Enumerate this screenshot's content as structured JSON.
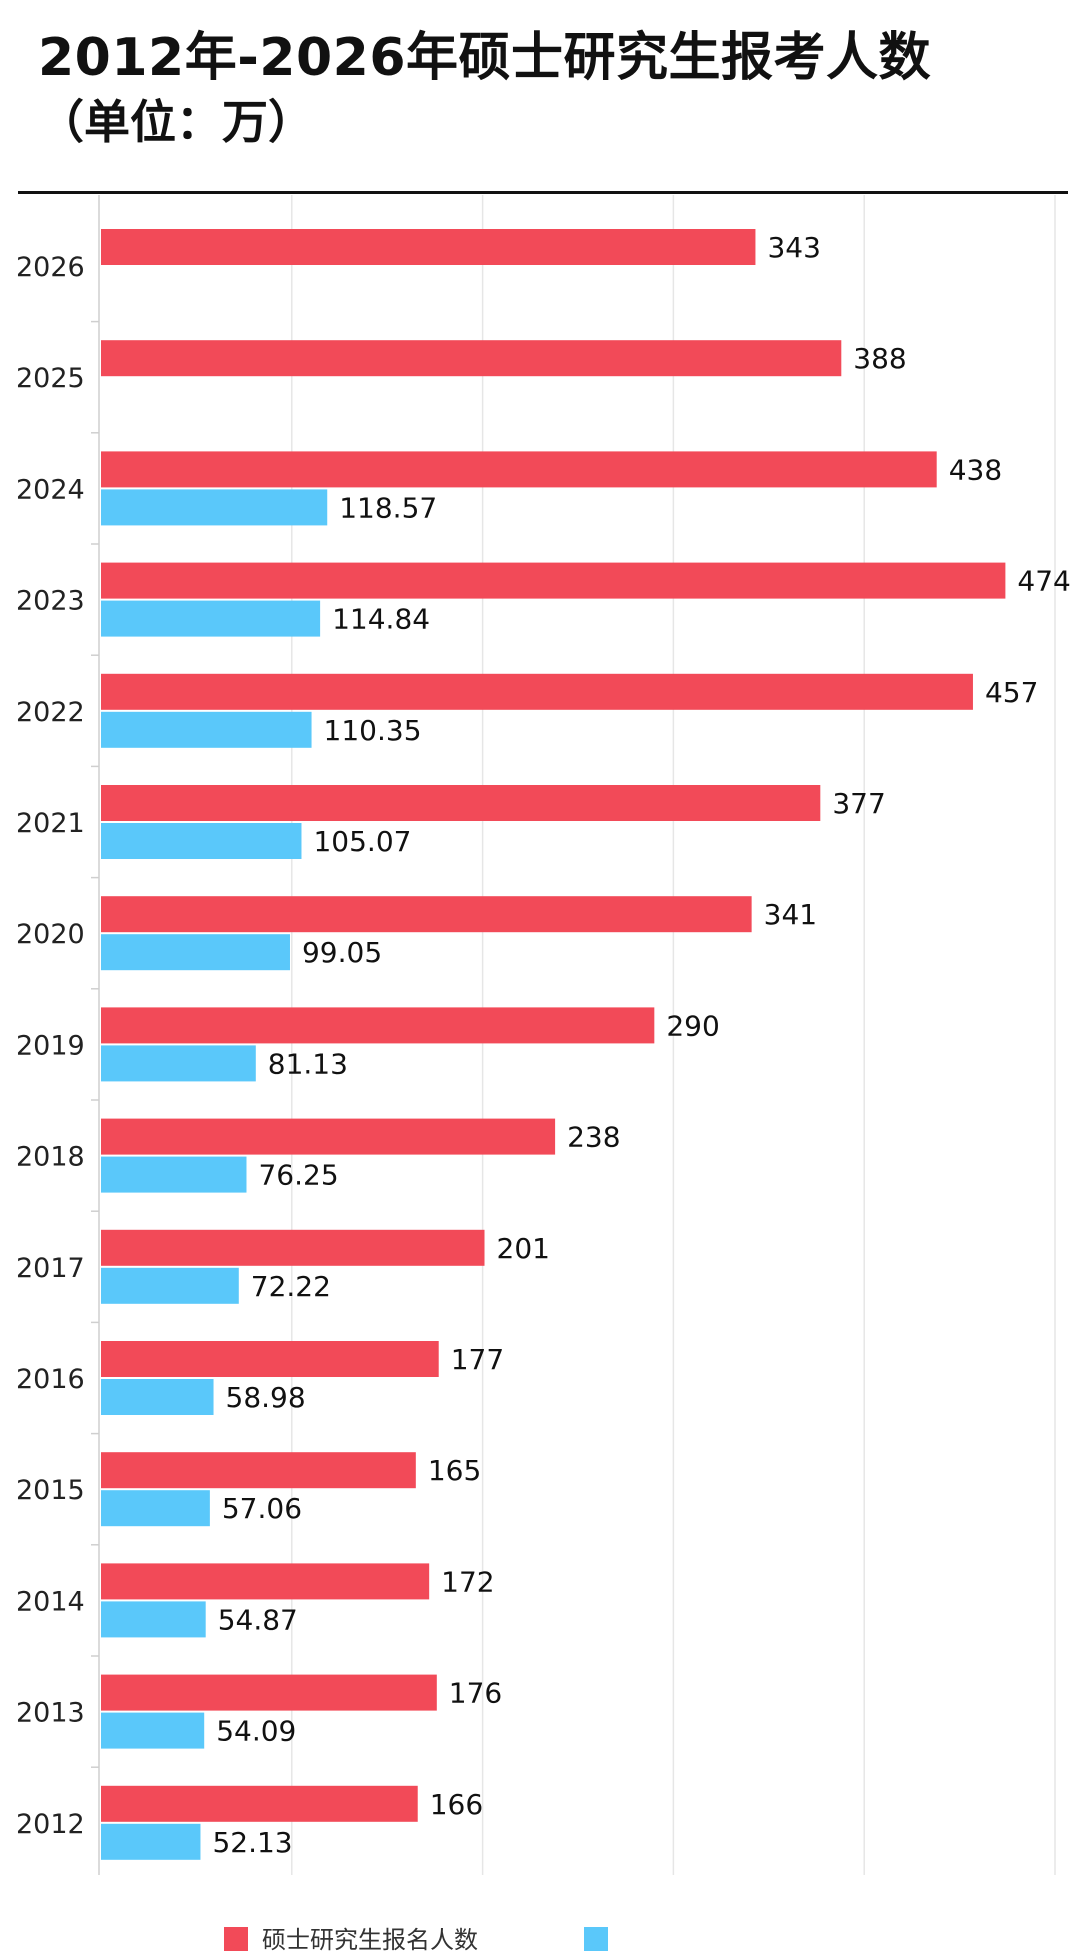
{
  "chart_data": {
    "type": "bar",
    "orientation": "horizontal",
    "title": "2012年-2026年硕士研究生报考人数",
    "subtitle": "（单位：万）",
    "categories": [
      "2026",
      "2025",
      "2024",
      "2023",
      "2022",
      "2021",
      "2020",
      "2019",
      "2018",
      "2017",
      "2016",
      "2015",
      "2014",
      "2013",
      "2012"
    ],
    "series": [
      {
        "name": "硕士研究生报名人数",
        "color": "#f24a58",
        "values": [
          343,
          388,
          438,
          474,
          457,
          377,
          341,
          290,
          238,
          201,
          177,
          165,
          172,
          176,
          166
        ],
        "labels": [
          "343",
          "388",
          "438",
          "474",
          "457",
          "377",
          "341",
          "290",
          "238",
          "201",
          "177",
          "165",
          "172",
          "176",
          "166"
        ]
      },
      {
        "name": "",
        "color": "#5ac8fa",
        "values": [
          null,
          null,
          118.57,
          114.84,
          110.35,
          105.07,
          99.05,
          81.13,
          76.25,
          72.22,
          58.98,
          57.06,
          54.87,
          54.09,
          52.13
        ],
        "labels": [
          "",
          "",
          "118.57",
          "114.84",
          "110.35",
          "105.07",
          "99.05",
          "81.13",
          "76.25",
          "72.22",
          "58.98",
          "57.06",
          "54.87",
          "54.09",
          "52.13"
        ]
      }
    ],
    "xlim": [
      0,
      500
    ],
    "grid": true,
    "legend_position": "bottom"
  }
}
